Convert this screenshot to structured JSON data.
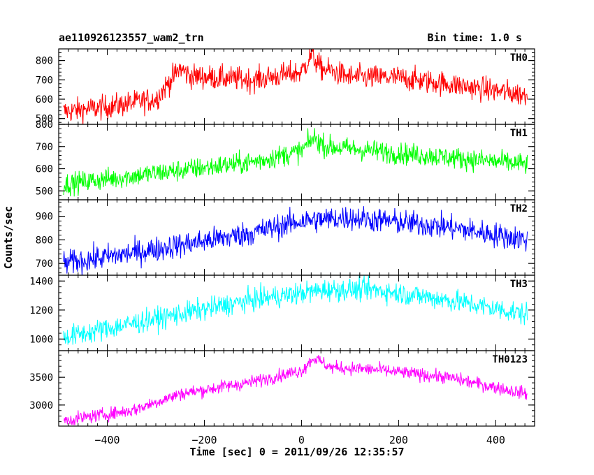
{
  "header": {
    "title": "ae110926123557_wam2_trn",
    "bin_time": "Bin time: 1.0 s"
  },
  "chart_data": {
    "type": "line",
    "xlabel": "Time [sec] 0 = 2011/09/26 12:35:57",
    "ylabel": "Counts/sec",
    "xlim": [
      -500,
      480
    ],
    "xticks": [
      -400,
      -200,
      0,
      200,
      400
    ],
    "x_range_data": [
      -490,
      465
    ],
    "panels": [
      {
        "name": "TH0",
        "color": "#ff0000",
        "ylim": [
          470,
          860
        ],
        "yticks": [
          500,
          600,
          700,
          800
        ],
        "trend": [
          [
            -490,
            535
          ],
          [
            -400,
            560
          ],
          [
            -300,
            600
          ],
          [
            -250,
            760
          ],
          [
            -230,
            720
          ],
          [
            -100,
            700
          ],
          [
            0,
            740
          ],
          [
            20,
            830
          ],
          [
            40,
            760
          ],
          [
            100,
            715
          ],
          [
            200,
            710
          ],
          [
            300,
            680
          ],
          [
            465,
            620
          ]
        ],
        "noise": 45
      },
      {
        "name": "TH1",
        "color": "#00ff00",
        "ylim": [
          460,
          800
        ],
        "yticks": [
          500,
          600,
          700,
          800
        ],
        "trend": [
          [
            -490,
            530
          ],
          [
            -300,
            580
          ],
          [
            -100,
            630
          ],
          [
            0,
            680
          ],
          [
            25,
            740
          ],
          [
            50,
            700
          ],
          [
            100,
            690
          ],
          [
            200,
            670
          ],
          [
            465,
            620
          ]
        ],
        "noise": 35
      },
      {
        "name": "TH2",
        "color": "#0000ff",
        "ylim": [
          650,
          970
        ],
        "yticks": [
          700,
          800,
          900
        ],
        "trend": [
          [
            -490,
            700
          ],
          [
            -300,
            760
          ],
          [
            -100,
            830
          ],
          [
            0,
            880
          ],
          [
            100,
            895
          ],
          [
            300,
            855
          ],
          [
            465,
            800
          ]
        ],
        "noise": 38
      },
      {
        "name": "TH3",
        "color": "#00ffff",
        "ylim": [
          920,
          1440
        ],
        "yticks": [
          1000,
          1200,
          1400
        ],
        "trend": [
          [
            -490,
            1010
          ],
          [
            -300,
            1140
          ],
          [
            -100,
            1270
          ],
          [
            50,
            1340
          ],
          [
            150,
            1340
          ],
          [
            300,
            1270
          ],
          [
            465,
            1170
          ]
        ],
        "noise": 55
      },
      {
        "name": "TH0123",
        "color": "#ff00ff",
        "ylim": [
          2620,
          3980
        ],
        "yticks": [
          3000,
          3500
        ],
        "trend": [
          [
            -490,
            2720
          ],
          [
            -350,
            2900
          ],
          [
            -250,
            3200
          ],
          [
            -100,
            3420
          ],
          [
            0,
            3620
          ],
          [
            25,
            3850
          ],
          [
            60,
            3680
          ],
          [
            150,
            3640
          ],
          [
            300,
            3500
          ],
          [
            465,
            3200
          ]
        ],
        "noise": 85
      }
    ]
  }
}
